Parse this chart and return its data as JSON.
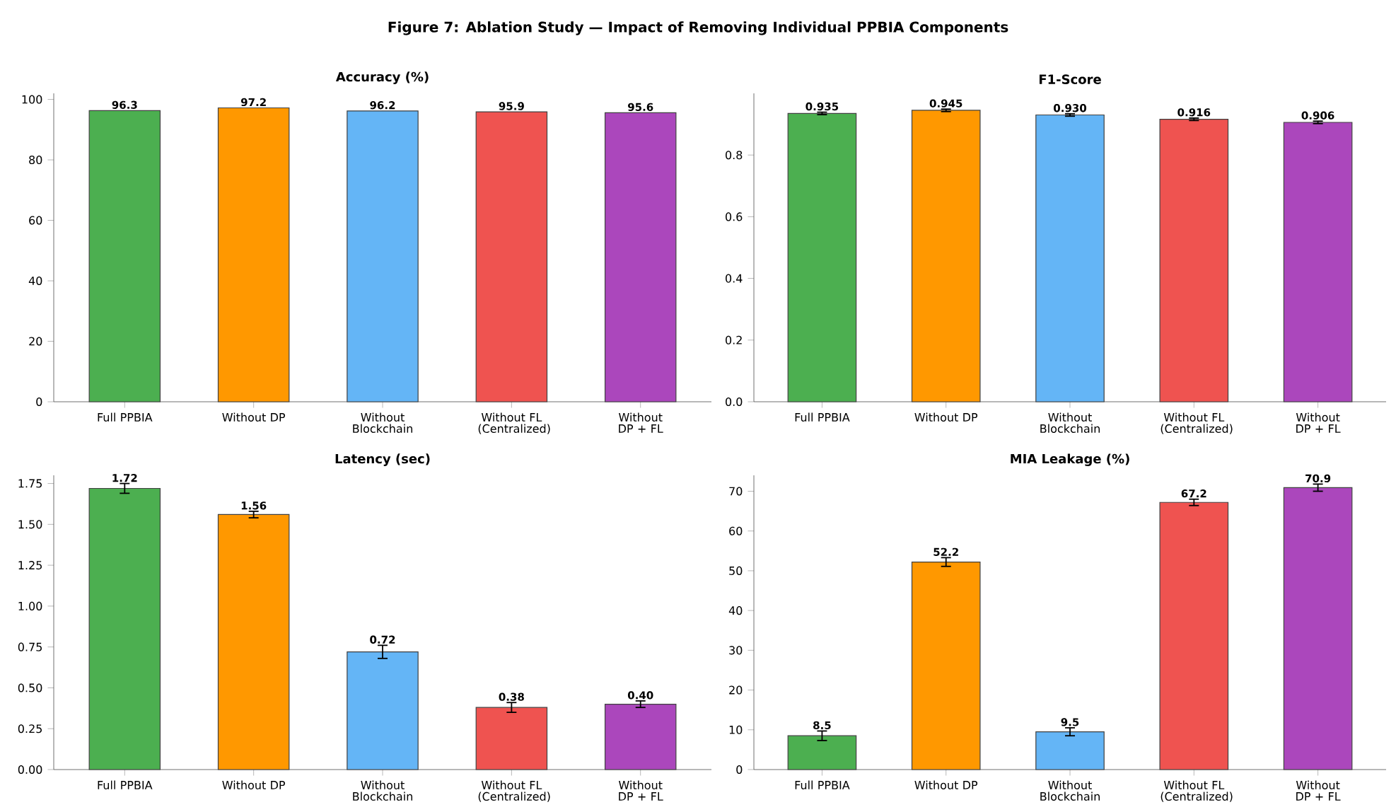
{
  "chart_data": [
    {
      "type": "bar",
      "title": "Accuracy (%)",
      "annotations": [
        "Figure 7: Ablation Study — Impact of Removing Individual PPBIA Components"
      ],
      "categories": [
        "Full PPBIA",
        "Without DP",
        "Without Blockchain",
        "Without FL (Centralized)",
        "Without DP + FL"
      ],
      "values": [
        96.3,
        97.2,
        96.2,
        95.9,
        95.6
      ],
      "colors": [
        "#4caf50",
        "#ff9800",
        "#64b5f6",
        "#ef5350",
        "#ab47bc"
      ],
      "value_labels": [
        "96.3",
        "97.2",
        "96.2",
        "95.9",
        "95.6"
      ],
      "ylim": [
        0,
        102
      ],
      "yticks": [
        0,
        20,
        40,
        60,
        80,
        100
      ]
    },
    {
      "type": "bar",
      "title": "F1-Score",
      "categories": [
        "Full PPBIA",
        "Without DP",
        "Without Blockchain",
        "Without FL (Centralized)",
        "Without DP + FL"
      ],
      "values": [
        0.935,
        0.945,
        0.93,
        0.916,
        0.906
      ],
      "colors": [
        "#4caf50",
        "#ff9800",
        "#64b5f6",
        "#ef5350",
        "#ab47bc"
      ],
      "errors": [
        0.004,
        0.004,
        0.004,
        0.004,
        0.004
      ],
      "value_labels": [
        "0.935",
        "0.945",
        "0.930",
        "0.916",
        "0.906"
      ],
      "ylim": [
        0,
        1.0
      ],
      "yticks": [
        {
          "value": 0,
          "label": "0.0"
        },
        0.2,
        0.4,
        0.6,
        0.8
      ]
    },
    {
      "type": "bar",
      "title": "Latency (sec)",
      "categories": [
        "Full PPBIA",
        "Without DP",
        "Without Blockchain",
        "Without FL (Centralized)",
        "Without DP + FL"
      ],
      "values": [
        1.72,
        1.56,
        0.72,
        0.38,
        0.4
      ],
      "colors": [
        "#4caf50",
        "#ff9800",
        "#64b5f6",
        "#ef5350",
        "#ab47bc"
      ],
      "errors": [
        0.03,
        0.02,
        0.04,
        0.03,
        0.02
      ],
      "value_labels": [
        "1.72",
        "1.56",
        "0.72",
        "0.38",
        "0.40"
      ],
      "ylim": [
        0,
        1.8
      ],
      "yticks": [
        {
          "value": 0,
          "label": "0.00"
        },
        0.25,
        {
          "value": 0.5,
          "label": "0.50"
        },
        0.75,
        {
          "value": 1,
          "label": "1.00"
        },
        1.25,
        {
          "value": 1.5,
          "label": "1.50"
        },
        1.75
      ]
    },
    {
      "type": "bar",
      "title": "MIA Leakage (%)",
      "categories": [
        "Full PPBIA",
        "Without DP",
        "Without Blockchain",
        "Without FL (Centralized)",
        "Without DP + FL"
      ],
      "values": [
        8.5,
        52.2,
        9.5,
        67.2,
        70.9
      ],
      "colors": [
        "#4caf50",
        "#ff9800",
        "#64b5f6",
        "#ef5350",
        "#ab47bc"
      ],
      "errors": [
        1.2,
        1.1,
        1.0,
        0.8,
        0.9
      ],
      "value_labels": [
        "8.5",
        "52.2",
        "9.5",
        "67.2",
        "70.9"
      ],
      "ylim": [
        0,
        74
      ],
      "yticks": [
        0,
        10,
        20,
        30,
        40,
        50,
        60,
        70
      ]
    }
  ]
}
